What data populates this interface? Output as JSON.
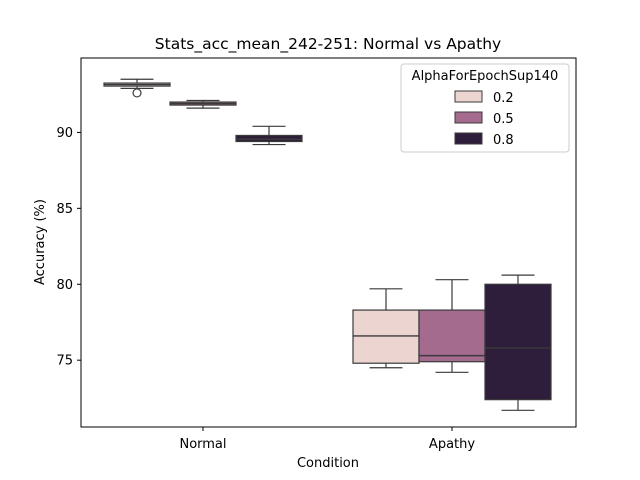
{
  "chart_data": {
    "type": "box",
    "title": "Stats_acc_mean_242-251: Normal vs Apathy",
    "xlabel": "Condition",
    "ylabel": "Accuracy (%)",
    "categories": [
      "Normal",
      "Apathy"
    ],
    "ylim": [
      70.6,
      94.9
    ],
    "yticks": [
      75,
      80,
      85,
      90
    ],
    "grid": false,
    "legend": {
      "title": "AlphaForEpochSup140",
      "placement": "upper right"
    },
    "series": [
      {
        "name": "0.2",
        "color": "#ecd5d1",
        "boxes": [
          {
            "category": "Normal",
            "whisker_low": 92.9,
            "q1": 93.05,
            "median": 93.15,
            "q3": 93.25,
            "whisker_high": 93.5,
            "outliers": [
              92.6
            ]
          },
          {
            "category": "Apathy",
            "whisker_low": 74.5,
            "q1": 74.8,
            "median": 76.6,
            "q3": 78.3,
            "whisker_high": 79.7,
            "outliers": []
          }
        ]
      },
      {
        "name": "0.5",
        "color": "#a46b8f",
        "boxes": [
          {
            "category": "Normal",
            "whisker_low": 91.6,
            "q1": 91.8,
            "median": 91.9,
            "q3": 92.0,
            "whisker_high": 92.1,
            "outliers": []
          },
          {
            "category": "Apathy",
            "whisker_low": 74.2,
            "q1": 74.9,
            "median": 75.3,
            "q3": 78.3,
            "whisker_high": 80.3,
            "outliers": []
          }
        ]
      },
      {
        "name": "0.8",
        "color": "#2e1e3b",
        "boxes": [
          {
            "category": "Normal",
            "whisker_low": 89.2,
            "q1": 89.4,
            "median": 89.55,
            "q3": 89.8,
            "whisker_high": 90.4,
            "outliers": []
          },
          {
            "category": "Apathy",
            "whisker_low": 71.7,
            "q1": 72.4,
            "median": 75.8,
            "q3": 80.0,
            "whisker_high": 80.6,
            "outliers": []
          }
        ]
      }
    ]
  }
}
